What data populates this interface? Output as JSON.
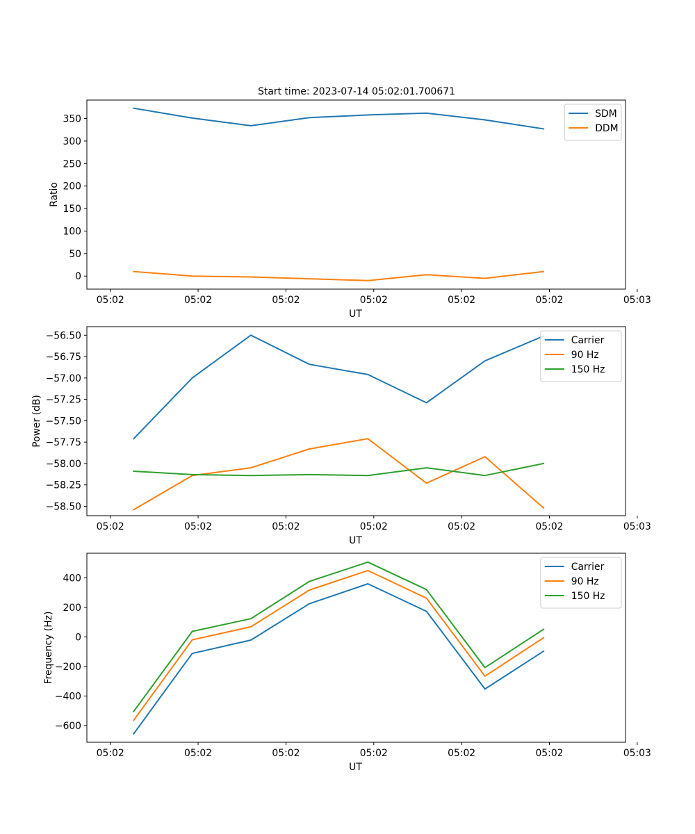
{
  "figure_title": "Start time: 2023-07-14 05:02:01.700671",
  "chart_data": [
    {
      "type": "line",
      "title": "Start time: 2023-07-14 05:02:01.700671",
      "xlabel": "UT",
      "ylabel": "Ratio",
      "xlim": [
        -0.4,
        8.8
      ],
      "ylim": [
        -29,
        391
      ],
      "x": [
        0.4,
        1.4,
        2.4,
        3.4,
        4.4,
        5.4,
        6.4,
        7.4
      ],
      "xticks": [
        {
          "value": 0,
          "label": "05:02"
        },
        {
          "value": 1.5,
          "label": "05:02"
        },
        {
          "value": 3,
          "label": "05:02"
        },
        {
          "value": 4.5,
          "label": "05:02"
        },
        {
          "value": 6,
          "label": "05:02"
        },
        {
          "value": 7.5,
          "label": "05:02"
        },
        {
          "value": 9,
          "label": "05:03"
        }
      ],
      "yticks": [
        {
          "value": 0,
          "label": "0"
        },
        {
          "value": 50,
          "label": "50"
        },
        {
          "value": 100,
          "label": "100"
        },
        {
          "value": 150,
          "label": "150"
        },
        {
          "value": 200,
          "label": "200"
        },
        {
          "value": 250,
          "label": "250"
        },
        {
          "value": 300,
          "label": "300"
        },
        {
          "value": 350,
          "label": "350"
        }
      ],
      "legend_position": "upper right",
      "series": [
        {
          "name": "SDM",
          "color": "#1f77b4",
          "values": [
            373,
            351,
            334,
            352,
            358,
            362,
            347,
            327
          ]
        },
        {
          "name": "DDM",
          "color": "#ff7f0e",
          "values": [
            10,
            0,
            -2,
            -6,
            -10,
            3,
            -5,
            10
          ]
        }
      ]
    },
    {
      "type": "line",
      "title": "",
      "xlabel": "UT",
      "ylabel": "Power (dB)",
      "xlim": [
        -0.4,
        8.8
      ],
      "ylim": [
        -58.61,
        -56.4
      ],
      "x": [
        0.4,
        1.4,
        2.4,
        3.4,
        4.4,
        5.4,
        6.4,
        7.4
      ],
      "xticks": [
        {
          "value": 0,
          "label": "05:02"
        },
        {
          "value": 1.5,
          "label": "05:02"
        },
        {
          "value": 3,
          "label": "05:02"
        },
        {
          "value": 4.5,
          "label": "05:02"
        },
        {
          "value": 6,
          "label": "05:02"
        },
        {
          "value": 7.5,
          "label": "05:02"
        },
        {
          "value": 9,
          "label": "05:03"
        }
      ],
      "yticks": [
        {
          "value": -58.5,
          "label": "−58.50"
        },
        {
          "value": -58.25,
          "label": "−58.25"
        },
        {
          "value": -58.0,
          "label": "−58.00"
        },
        {
          "value": -57.75,
          "label": "−57.75"
        },
        {
          "value": -57.5,
          "label": "−57.50"
        },
        {
          "value": -57.25,
          "label": "−57.25"
        },
        {
          "value": -57.0,
          "label": "−57.00"
        },
        {
          "value": -56.75,
          "label": "−56.75"
        },
        {
          "value": -56.5,
          "label": "−56.50"
        }
      ],
      "legend_position": "upper right",
      "series": [
        {
          "name": "Carrier",
          "color": "#1f77b4",
          "values": [
            -57.71,
            -57.0,
            -56.5,
            -56.84,
            -56.96,
            -57.29,
            -56.8,
            -56.51
          ]
        },
        {
          "name": "90 Hz",
          "color": "#ff7f0e",
          "values": [
            -58.54,
            -58.14,
            -58.05,
            -57.83,
            -57.71,
            -58.23,
            -57.92,
            -58.52
          ]
        },
        {
          "name": "150 Hz",
          "color": "#2ca02c",
          "values": [
            -58.09,
            -58.13,
            -58.14,
            -58.13,
            -58.14,
            -58.05,
            -58.14,
            -58.0
          ]
        }
      ]
    },
    {
      "type": "line",
      "title": "",
      "xlabel": "UT",
      "ylabel": "Frequency (Hz)",
      "xlim": [
        -0.4,
        8.8
      ],
      "ylim": [
        -713,
        566
      ],
      "x": [
        0.4,
        1.4,
        2.4,
        3.4,
        4.4,
        5.4,
        6.4,
        7.4
      ],
      "xticks": [
        {
          "value": 0,
          "label": "05:02"
        },
        {
          "value": 1.5,
          "label": "05:02"
        },
        {
          "value": 3,
          "label": "05:02"
        },
        {
          "value": 4.5,
          "label": "05:02"
        },
        {
          "value": 6,
          "label": "05:02"
        },
        {
          "value": 7.5,
          "label": "05:02"
        },
        {
          "value": 9,
          "label": "05:03"
        }
      ],
      "yticks": [
        {
          "value": -600,
          "label": "−600"
        },
        {
          "value": -400,
          "label": "−400"
        },
        {
          "value": -200,
          "label": "−200"
        },
        {
          "value": 0,
          "label": "0"
        },
        {
          "value": 200,
          "label": "200"
        },
        {
          "value": 400,
          "label": "400"
        }
      ],
      "legend_position": "upper right",
      "series": [
        {
          "name": "Carrier",
          "color": "#1f77b4",
          "values": [
            -655,
            -112,
            -22,
            224,
            359,
            173,
            -353,
            -97
          ]
        },
        {
          "name": "90 Hz",
          "color": "#ff7f0e",
          "values": [
            -564,
            -20,
            68,
            317,
            449,
            262,
            -266,
            -6
          ]
        },
        {
          "name": "150 Hz",
          "color": "#2ca02c",
          "values": [
            -504,
            37,
            123,
            375,
            506,
            320,
            -208,
            51
          ]
        }
      ]
    }
  ]
}
